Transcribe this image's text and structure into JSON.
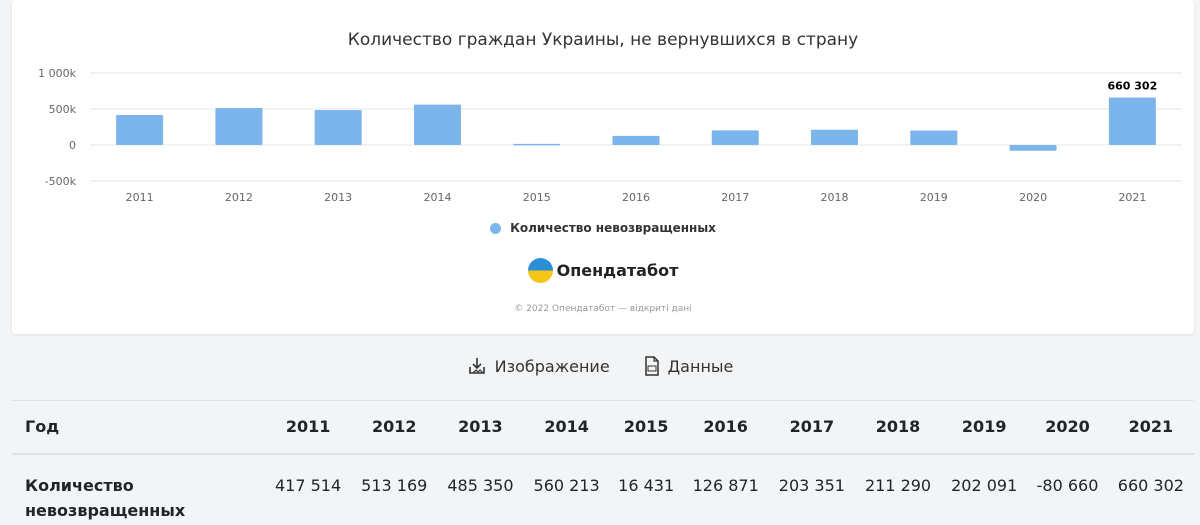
{
  "chart_data": {
    "type": "bar",
    "title": "Количество граждан Украины, не вернувшихся в страну",
    "categories": [
      "2011",
      "2012",
      "2013",
      "2014",
      "2015",
      "2016",
      "2017",
      "2018",
      "2019",
      "2020",
      "2021"
    ],
    "series": [
      {
        "name": "Количество невозвращенных",
        "values": [
          417514,
          513169,
          485350,
          560213,
          16431,
          126871,
          203351,
          211290,
          202091,
          -80660,
          660302
        ]
      }
    ],
    "ylim": [
      -500000,
      1000000
    ],
    "yticks": [
      -500000,
      0,
      500000,
      1000000
    ],
    "ytick_labels": [
      "-500k",
      "0",
      "500k",
      "1 000k"
    ],
    "data_labels": {
      "2021": "660 302"
    },
    "bar_color": "#7cb5ec",
    "grid": true,
    "legend_position": "bottom-center"
  },
  "brand": {
    "name": "Опендатабот"
  },
  "copyright": "© 2022 Опендатабот — відкриті дані",
  "actions": {
    "image_label": "Изображение",
    "data_label": "Данные"
  },
  "table": {
    "header_label": "Год",
    "years": [
      "2011",
      "2012",
      "2013",
      "2014",
      "2015",
      "2016",
      "2017",
      "2018",
      "2019",
      "2020",
      "2021"
    ],
    "row_label": "Количество невозвращенных",
    "values": [
      "417 514",
      "513 169",
      "485 350",
      "560 213",
      "16 431",
      "126 871",
      "203 351",
      "211 290",
      "202 091",
      "-80 660",
      "660 302"
    ]
  }
}
